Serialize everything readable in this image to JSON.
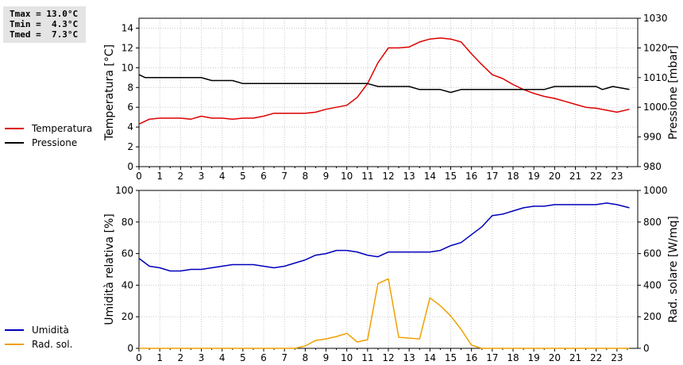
{
  "stats": {
    "tmax": "Tmax = 13.0°C",
    "tmin": "Tmin =  4.3°C",
    "tmed": "Tmed =  7.3°C"
  },
  "colors": {
    "temperature": "#dd0000",
    "pressure": "#000000",
    "humidity": "#0000bb",
    "radiation": "#f0a000",
    "grid": "#c8c8c8"
  },
  "chart_data": [
    {
      "type": "line",
      "xlabel": "",
      "x_ticks": [
        0,
        1,
        2,
        3,
        4,
        5,
        6,
        7,
        8,
        9,
        10,
        11,
        12,
        13,
        14,
        15,
        16,
        17,
        18,
        19,
        20,
        21,
        22,
        23
      ],
      "xlim": [
        0,
        24
      ],
      "ylabel": "Temperatura [°C]",
      "ylabel_right": "Pressione [mbar]",
      "ylim": [
        0,
        15
      ],
      "y_ticks": [
        0,
        2,
        4,
        6,
        8,
        10,
        12,
        14
      ],
      "ylim_right": [
        980,
        1030
      ],
      "y_ticks_right": [
        980,
        990,
        1000,
        1010,
        1020,
        1030
      ],
      "grid": true,
      "legend": "left",
      "series": [
        {
          "name": "Temperatura",
          "axis": "left",
          "x": [
            0,
            0.5,
            1,
            1.5,
            2,
            2.5,
            3,
            3.5,
            4,
            4.5,
            5,
            5.5,
            6,
            6.5,
            7,
            7.5,
            8,
            8.5,
            9,
            9.5,
            10,
            10.5,
            11,
            11.5,
            12,
            12.5,
            13,
            13.5,
            14,
            14.5,
            15,
            15.5,
            16,
            16.5,
            17,
            17.5,
            18,
            18.5,
            19,
            19.5,
            20,
            20.5,
            21,
            21.5,
            22,
            22.5,
            23,
            23.6
          ],
          "values": [
            4.3,
            4.8,
            4.9,
            4.9,
            4.9,
            4.8,
            5.1,
            4.9,
            4.9,
            4.8,
            4.9,
            4.9,
            5.1,
            5.4,
            5.4,
            5.4,
            5.4,
            5.5,
            5.8,
            6.0,
            6.2,
            7.0,
            8.4,
            10.5,
            12.0,
            12.0,
            12.1,
            12.6,
            12.9,
            13.0,
            12.9,
            12.6,
            11.4,
            10.3,
            9.3,
            8.9,
            8.3,
            7.8,
            7.4,
            7.1,
            6.9,
            6.6,
            6.3,
            6.0,
            5.9,
            5.7,
            5.5,
            5.8
          ]
        },
        {
          "name": "Pressione",
          "axis": "right",
          "x": [
            0,
            0.3,
            1,
            2,
            3,
            3.5,
            4,
            4.5,
            5,
            6,
            7,
            8,
            9,
            10,
            11,
            11.5,
            12,
            13,
            13.5,
            14,
            14.5,
            15,
            15.5,
            16,
            17,
            18,
            19,
            19.5,
            20,
            21,
            22,
            22.3,
            22.8,
            23.6
          ],
          "values": [
            1011,
            1010,
            1010,
            1010,
            1010,
            1009,
            1009,
            1009,
            1008,
            1008,
            1008,
            1008,
            1008,
            1008,
            1008,
            1007,
            1007,
            1007,
            1006,
            1006,
            1006,
            1005,
            1006,
            1006,
            1006,
            1006,
            1006,
            1006,
            1007,
            1007,
            1007,
            1006,
            1007,
            1006
          ]
        }
      ]
    },
    {
      "type": "line",
      "xlabel": "",
      "x_ticks": [
        0,
        1,
        2,
        3,
        4,
        5,
        6,
        7,
        8,
        9,
        10,
        11,
        12,
        13,
        14,
        15,
        16,
        17,
        18,
        19,
        20,
        21,
        22,
        23
      ],
      "xlim": [
        0,
        24
      ],
      "ylabel": "Umidità relativa [%]",
      "ylabel_right": "Rad. solare [W/mq]",
      "ylim": [
        0,
        100
      ],
      "y_ticks": [
        0,
        20,
        40,
        60,
        80,
        100
      ],
      "ylim_right": [
        0,
        1000
      ],
      "y_ticks_right": [
        0,
        200,
        400,
        600,
        800,
        1000
      ],
      "grid": true,
      "legend": "left",
      "series": [
        {
          "name": "Umidità",
          "axis": "left",
          "x": [
            0,
            0.5,
            1,
            1.5,
            2,
            2.5,
            3,
            3.5,
            4,
            4.5,
            5,
            5.5,
            6,
            6.5,
            7,
            7.5,
            8,
            8.5,
            9,
            9.5,
            10,
            10.5,
            11,
            11.5,
            12,
            12.5,
            13,
            13.5,
            14,
            14.5,
            15,
            15.5,
            16,
            16.5,
            17,
            17.5,
            18,
            18.5,
            19,
            19.5,
            20,
            20.5,
            21,
            21.5,
            22,
            22.5,
            23,
            23.6
          ],
          "values": [
            57,
            52,
            51,
            49,
            49,
            50,
            50,
            51,
            52,
            53,
            53,
            53,
            52,
            51,
            52,
            54,
            56,
            59,
            60,
            62,
            62,
            61,
            59,
            58,
            61,
            61,
            61,
            61,
            61,
            62,
            65,
            67,
            72,
            77,
            84,
            85,
            87,
            89,
            90,
            90,
            91,
            91,
            91,
            91,
            91,
            92,
            91,
            89
          ]
        },
        {
          "name": "Rad. sol.",
          "axis": "right",
          "x": [
            0,
            1,
            2,
            3,
            4,
            5,
            6,
            7,
            7.5,
            8,
            8.5,
            9,
            9.5,
            10,
            10.5,
            11,
            11.5,
            12,
            12.5,
            13,
            13.5,
            14,
            14.5,
            15,
            15.5,
            16,
            16.5,
            17,
            18,
            19,
            20,
            21,
            22,
            23,
            23.6
          ],
          "values": [
            0,
            0,
            0,
            0,
            0,
            0,
            0,
            0,
            0,
            15,
            50,
            60,
            75,
            95,
            40,
            55,
            410,
            440,
            70,
            65,
            60,
            320,
            270,
            205,
            120,
            20,
            0,
            0,
            0,
            0,
            0,
            0,
            0,
            0,
            0
          ]
        }
      ]
    }
  ]
}
